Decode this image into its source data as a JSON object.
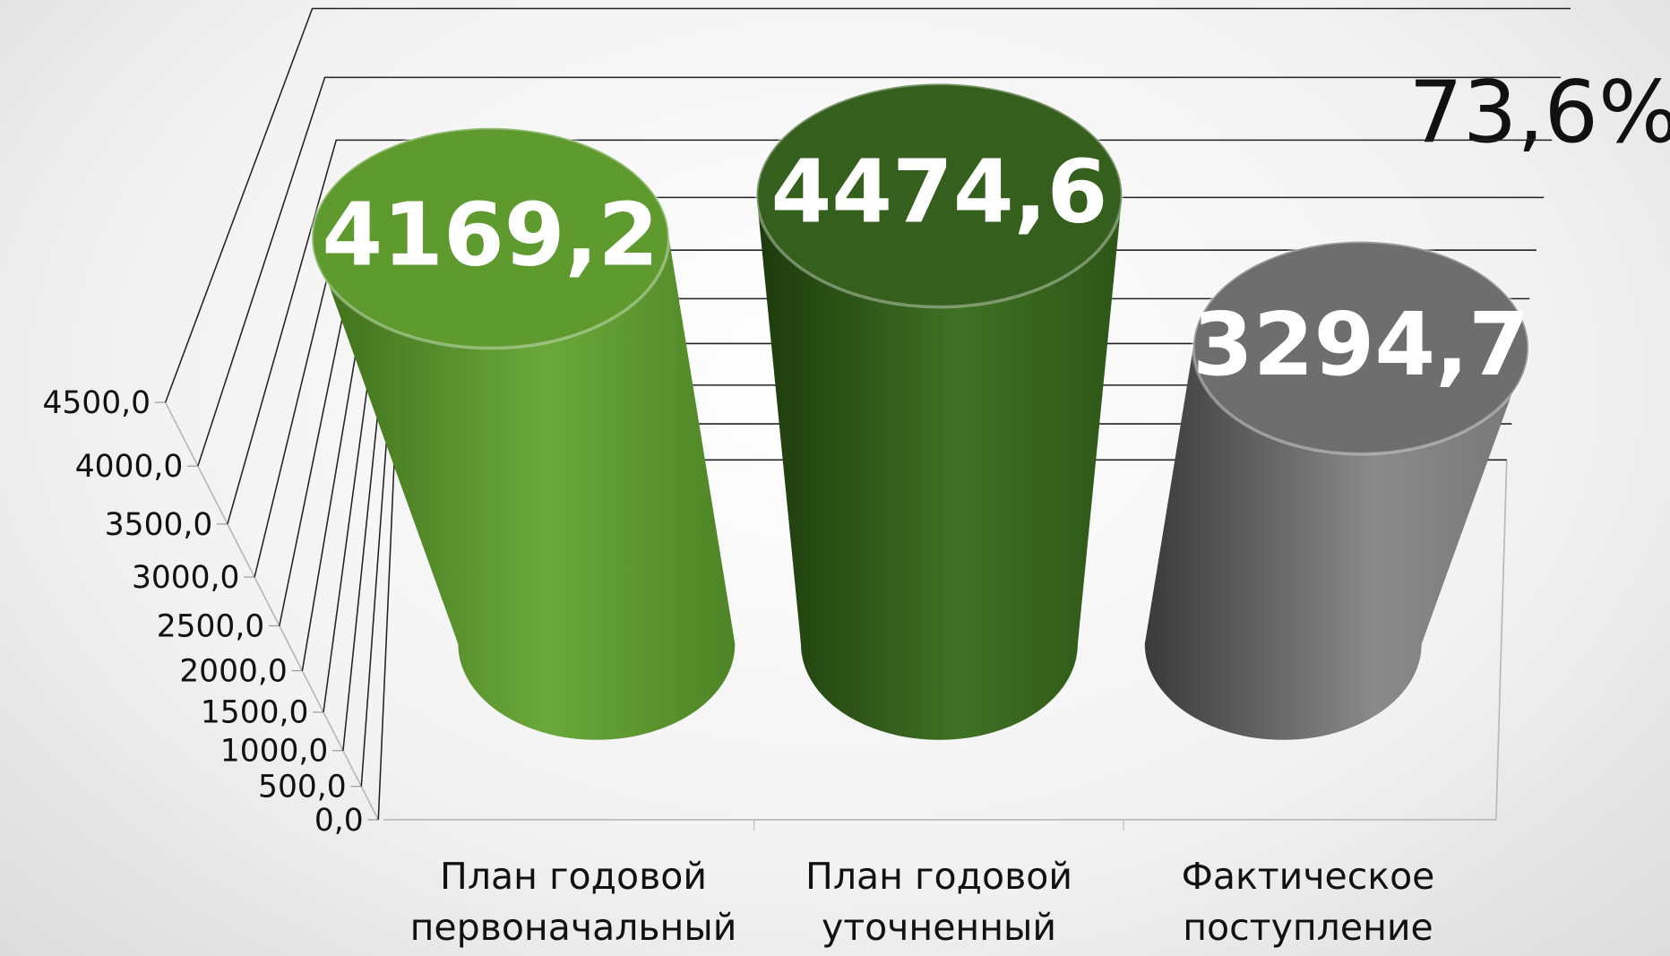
{
  "chart_data": {
    "type": "bar3d",
    "categories": [
      "План годовой первоначальный",
      "План годовой уточненный",
      "Фактическое поступление"
    ],
    "values": [
      4169.2,
      4474.6,
      3294.7
    ],
    "value_labels": [
      "4169,2",
      "4474,6",
      "3294,7"
    ],
    "colors": [
      "#5e9a2e",
      "#355f1c",
      "#6e6e6e"
    ],
    "annotation": "73,6%",
    "ylim": [
      0,
      4500
    ],
    "yticks": [
      {
        "value": 0,
        "label": "0,0"
      },
      {
        "value": 500,
        "label": "500,0"
      },
      {
        "value": 1000,
        "label": "1000,0"
      },
      {
        "value": 1500,
        "label": "1500,0"
      },
      {
        "value": 2000,
        "label": "2000,0"
      },
      {
        "value": 2500,
        "label": "2500,0"
      },
      {
        "value": 3000,
        "label": "3000,0"
      },
      {
        "value": 3500,
        "label": "3500,0"
      },
      {
        "value": 4000,
        "label": "4000,0"
      },
      {
        "value": 4500,
        "label": "4500,0"
      }
    ],
    "grid": true
  }
}
